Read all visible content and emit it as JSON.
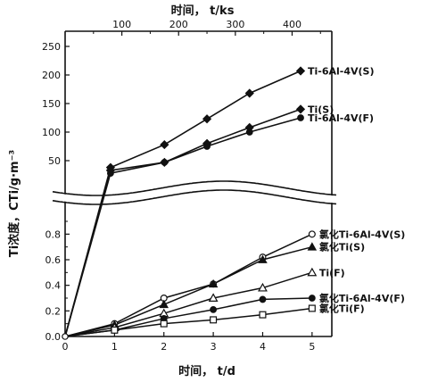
{
  "chart_data": {
    "type": "line",
    "top_axis": {
      "label": "时间， t/ks",
      "ticks": [
        "100",
        "200",
        "300",
        "400"
      ],
      "range": [
        0,
        470
      ]
    },
    "bottom_axis": {
      "label": "时间， t/d",
      "ticks": [
        "0",
        "1",
        "2",
        "3",
        "4",
        "5"
      ],
      "range": [
        0,
        5.4
      ]
    },
    "ylabel": "Ti浓度，CTi/g·m⁻³",
    "upper_y": {
      "ticks": [
        "50",
        "100",
        "150",
        "200",
        "250"
      ],
      "range": [
        0,
        250
      ]
    },
    "lower_y": {
      "ticks": [
        "0.0",
        "0.2",
        "0.4",
        "0.6",
        "0.8"
      ],
      "range": [
        0,
        0.9
      ]
    },
    "upper_series": [
      {
        "name": "Ti-6Al-4V(S)",
        "marker": "diamond",
        "x": [
          0,
          80,
          175,
          250,
          325,
          415
        ],
        "y": [
          0,
          38,
          78,
          123,
          168,
          207
        ]
      },
      {
        "name": "Ti(S)",
        "marker": "diamond",
        "x": [
          0,
          80,
          175,
          250,
          325,
          415
        ],
        "y": [
          0,
          33,
          47,
          80,
          108,
          140
        ]
      },
      {
        "name": "Ti-6Al-4V(F)",
        "marker": "dot",
        "x": [
          0,
          80,
          175,
          250,
          325,
          415
        ],
        "y": [
          0,
          28,
          47,
          75,
          100,
          125
        ]
      }
    ],
    "lower_series": [
      {
        "name": "氯化Ti-6Al-4V(S)",
        "marker": "circle-open",
        "x": [
          0,
          1,
          2,
          3,
          4,
          5
        ],
        "y": [
          0,
          0.1,
          0.3,
          0.41,
          0.62,
          0.8
        ]
      },
      {
        "name": "氯化Ti(S)",
        "marker": "triangle-filled",
        "x": [
          0,
          1,
          2,
          3,
          4,
          5
        ],
        "y": [
          0,
          0.09,
          0.25,
          0.41,
          0.6,
          0.7
        ]
      },
      {
        "name": "Ti(F)",
        "marker": "triangle-open",
        "x": [
          0,
          1,
          2,
          3,
          4,
          5
        ],
        "y": [
          0,
          0.07,
          0.18,
          0.3,
          0.38,
          0.5
        ]
      },
      {
        "name": "氯化Ti-6Al-4V(F)",
        "marker": "dot",
        "x": [
          0,
          1,
          2,
          3,
          4,
          5
        ],
        "y": [
          0,
          0.05,
          0.14,
          0.21,
          0.29,
          0.3
        ]
      },
      {
        "name": "氯化Ti(F)",
        "marker": "square-open",
        "x": [
          0,
          1,
          2,
          3,
          4,
          5
        ],
        "y": [
          0,
          0.05,
          0.1,
          0.13,
          0.17,
          0.22
        ]
      }
    ],
    "steep_rise_lines": [
      {
        "y_upper": 38
      },
      {
        "y_upper": 33
      },
      {
        "y_upper": 28
      }
    ],
    "axis_break": "wavy double line between upper and lower panels",
    "grid": false,
    "colors": {
      "ink": "#111111",
      "background": "#ffffff"
    }
  }
}
